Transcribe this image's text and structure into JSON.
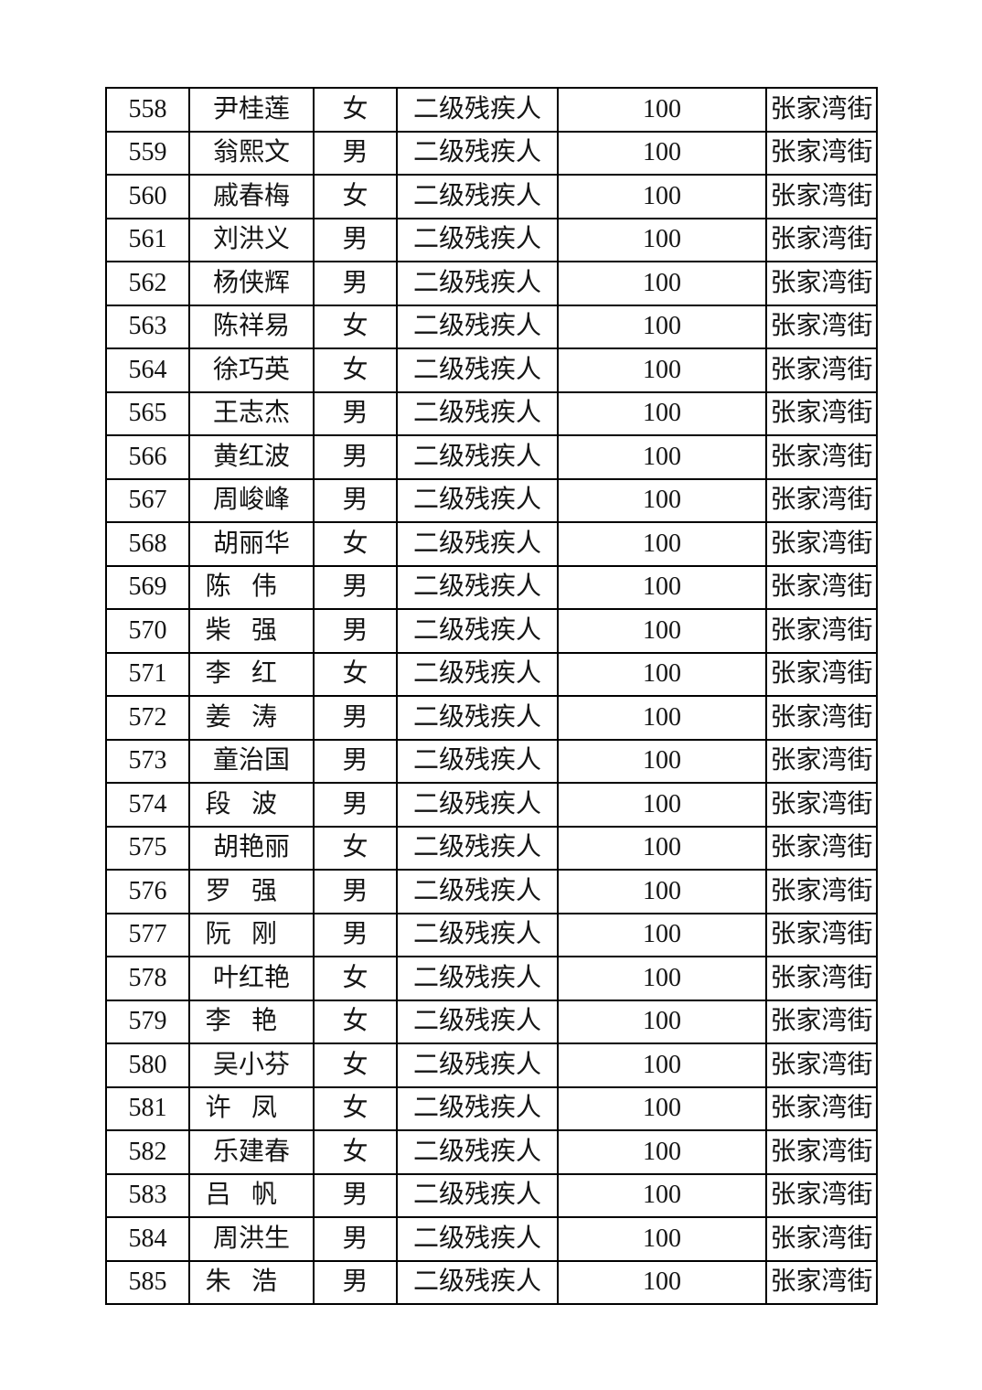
{
  "page": {
    "background_color": "#ffffff",
    "text_color": "#141414",
    "border_color": "#000000"
  },
  "table": {
    "columns": [
      "serial",
      "name",
      "gender",
      "category",
      "amount",
      "street"
    ],
    "rows": [
      [
        "558",
        "尹桂莲",
        "女",
        "二级残疾人",
        "100",
        "张家湾街"
      ],
      [
        "559",
        "翁熙文",
        "男",
        "二级残疾人",
        "100",
        "张家湾街"
      ],
      [
        "560",
        "戚春梅",
        "女",
        "二级残疾人",
        "100",
        "张家湾街"
      ],
      [
        "561",
        "刘洪义",
        "男",
        "二级残疾人",
        "100",
        "张家湾街"
      ],
      [
        "562",
        "杨侠辉",
        "男",
        "二级残疾人",
        "100",
        "张家湾街"
      ],
      [
        "563",
        "陈祥易",
        "女",
        "二级残疾人",
        "100",
        "张家湾街"
      ],
      [
        "564",
        "徐巧英",
        "女",
        "二级残疾人",
        "100",
        "张家湾街"
      ],
      [
        "565",
        "王志杰",
        "男",
        "二级残疾人",
        "100",
        "张家湾街"
      ],
      [
        "566",
        "黄红波",
        "男",
        "二级残疾人",
        "100",
        "张家湾街"
      ],
      [
        "567",
        "周峻峰",
        "男",
        "二级残疾人",
        "100",
        "张家湾街"
      ],
      [
        "568",
        "胡丽华",
        "女",
        "二级残疾人",
        "100",
        "张家湾街"
      ],
      [
        "569",
        "陈伟",
        "男",
        "二级残疾人",
        "100",
        "张家湾街"
      ],
      [
        "570",
        "柴强",
        "男",
        "二级残疾人",
        "100",
        "张家湾街"
      ],
      [
        "571",
        "李红",
        "女",
        "二级残疾人",
        "100",
        "张家湾街"
      ],
      [
        "572",
        "姜涛",
        "男",
        "二级残疾人",
        "100",
        "张家湾街"
      ],
      [
        "573",
        "童治国",
        "男",
        "二级残疾人",
        "100",
        "张家湾街"
      ],
      [
        "574",
        "段波",
        "男",
        "二级残疾人",
        "100",
        "张家湾街"
      ],
      [
        "575",
        "胡艳丽",
        "女",
        "二级残疾人",
        "100",
        "张家湾街"
      ],
      [
        "576",
        "罗强",
        "男",
        "二级残疾人",
        "100",
        "张家湾街"
      ],
      [
        "577",
        "阮刚",
        "男",
        "二级残疾人",
        "100",
        "张家湾街"
      ],
      [
        "578",
        "叶红艳",
        "女",
        "二级残疾人",
        "100",
        "张家湾街"
      ],
      [
        "579",
        "李艳",
        "女",
        "二级残疾人",
        "100",
        "张家湾街"
      ],
      [
        "580",
        "吴小芬",
        "女",
        "二级残疾人",
        "100",
        "张家湾街"
      ],
      [
        "581",
        "许凤",
        "女",
        "二级残疾人",
        "100",
        "张家湾街"
      ],
      [
        "582",
        "乐建春",
        "女",
        "二级残疾人",
        "100",
        "张家湾街"
      ],
      [
        "583",
        "吕帆",
        "男",
        "二级残疾人",
        "100",
        "张家湾街"
      ],
      [
        "584",
        "周洪生",
        "男",
        "二级残疾人",
        "100",
        "张家湾街"
      ],
      [
        "585",
        "朱浩",
        "男",
        "二级残疾人",
        "100",
        "张家湾街"
      ]
    ]
  }
}
